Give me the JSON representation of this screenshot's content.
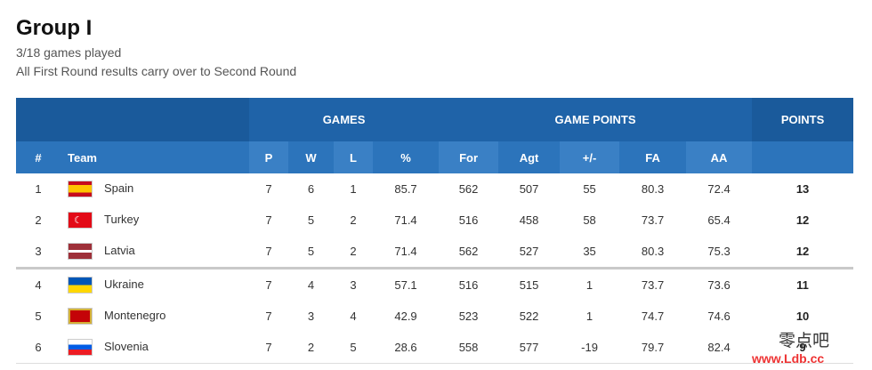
{
  "title": "Group I",
  "subtitle1": "3/18 games played",
  "subtitle2": "All First Round results carry over to Second Round",
  "groups": {
    "games": "GAMES",
    "game_points": "GAME POINTS",
    "points": "POINTS"
  },
  "columns": {
    "rank": "#",
    "team": "Team",
    "p": "P",
    "w": "W",
    "l": "L",
    "pct": "%",
    "for": "For",
    "agt": "Agt",
    "diff": "+/-",
    "fa": "FA",
    "aa": "AA"
  },
  "rows": [
    {
      "rank": "1",
      "team": "Spain",
      "flag": "flag-spain",
      "p": "7",
      "w": "6",
      "l": "1",
      "pct": "85.7",
      "for": "562",
      "agt": "507",
      "diff": "55",
      "fa": "80.3",
      "aa": "72.4",
      "pts": "13"
    },
    {
      "rank": "2",
      "team": "Turkey",
      "flag": "flag-turkey",
      "p": "7",
      "w": "5",
      "l": "2",
      "pct": "71.4",
      "for": "516",
      "agt": "458",
      "diff": "58",
      "fa": "73.7",
      "aa": "65.4",
      "pts": "12"
    },
    {
      "rank": "3",
      "team": "Latvia",
      "flag": "flag-latvia",
      "p": "7",
      "w": "5",
      "l": "2",
      "pct": "71.4",
      "for": "562",
      "agt": "527",
      "diff": "35",
      "fa": "80.3",
      "aa": "75.3",
      "pts": "12"
    },
    {
      "rank": "4",
      "team": "Ukraine",
      "flag": "flag-ukraine",
      "p": "7",
      "w": "4",
      "l": "3",
      "pct": "57.1",
      "for": "516",
      "agt": "515",
      "diff": "1",
      "fa": "73.7",
      "aa": "73.6",
      "pts": "11"
    },
    {
      "rank": "5",
      "team": "Montenegro",
      "flag": "flag-montenegro",
      "p": "7",
      "w": "3",
      "l": "4",
      "pct": "42.9",
      "for": "523",
      "agt": "522",
      "diff": "1",
      "fa": "74.7",
      "aa": "74.6",
      "pts": "10"
    },
    {
      "rank": "6",
      "team": "Slovenia",
      "flag": "flag-slovenia",
      "p": "7",
      "w": "2",
      "l": "5",
      "pct": "28.6",
      "for": "558",
      "agt": "577",
      "diff": "-19",
      "fa": "79.7",
      "aa": "82.4",
      "pts": "9"
    }
  ],
  "watermark": {
    "cn": "零点吧",
    "url": "www.Ldb.cc"
  },
  "colors": {
    "header": "#1f63a8",
    "subheader": "#2c74bb"
  }
}
